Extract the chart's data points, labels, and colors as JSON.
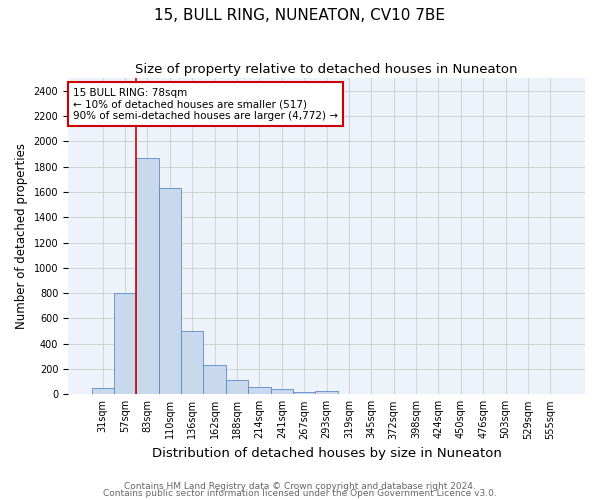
{
  "title": "15, BULL RING, NUNEATON, CV10 7BE",
  "subtitle": "Size of property relative to detached houses in Nuneaton",
  "xlabel": "Distribution of detached houses by size in Nuneaton",
  "ylabel": "Number of detached properties",
  "bar_labels": [
    "31sqm",
    "57sqm",
    "83sqm",
    "110sqm",
    "136sqm",
    "162sqm",
    "188sqm",
    "214sqm",
    "241sqm",
    "267sqm",
    "293sqm",
    "319sqm",
    "345sqm",
    "372sqm",
    "398sqm",
    "424sqm",
    "450sqm",
    "476sqm",
    "503sqm",
    "529sqm",
    "555sqm"
  ],
  "bar_values": [
    50,
    800,
    1870,
    1630,
    500,
    235,
    110,
    55,
    40,
    15,
    25,
    0,
    0,
    0,
    0,
    0,
    0,
    0,
    0,
    0,
    0
  ],
  "bar_color": "#c8d9ee",
  "bar_edge_color": "#5b8ac5",
  "red_line_index": 2,
  "annotation_text": "15 BULL RING: 78sqm\n← 10% of detached houses are smaller (517)\n90% of semi-detached houses are larger (4,772) →",
  "annotation_box_color": "#ffffff",
  "annotation_box_edge": "#cc0000",
  "ylim": [
    0,
    2500
  ],
  "yticks": [
    0,
    200,
    400,
    600,
    800,
    1000,
    1200,
    1400,
    1600,
    1800,
    2000,
    2200,
    2400
  ],
  "grid_color": "#cccccc",
  "bg_color": "#eef2fa",
  "footer1": "Contains HM Land Registry data © Crown copyright and database right 2024.",
  "footer2": "Contains public sector information licensed under the Open Government Licence v3.0.",
  "title_fontsize": 11,
  "subtitle_fontsize": 9.5,
  "xlabel_fontsize": 9.5,
  "ylabel_fontsize": 8.5,
  "tick_fontsize": 7,
  "annot_fontsize": 7.5,
  "footer_fontsize": 6.5
}
